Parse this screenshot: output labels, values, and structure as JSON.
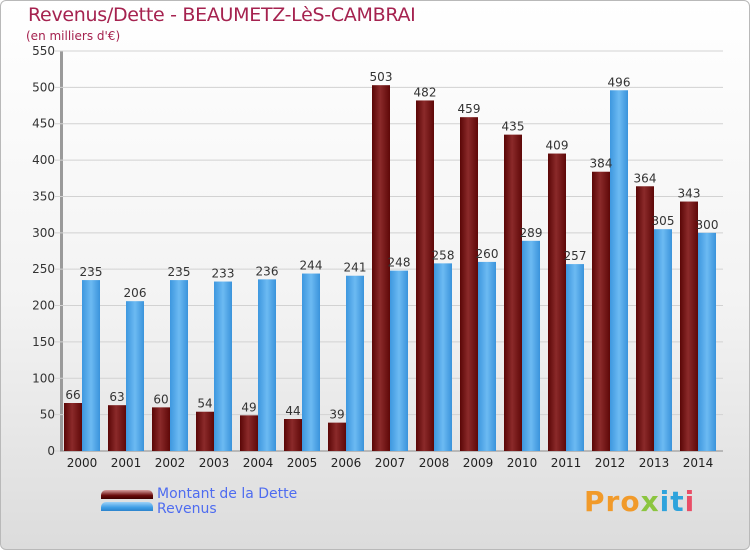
{
  "title": "Revenus/Dette - BEAUMETZ-LèS-CAMBRAI",
  "subtitle": "(en milliers d'€)",
  "legend": {
    "dette": "Montant de la Dette",
    "revenus": "Revenus"
  },
  "logo": {
    "text": "Proxiti",
    "parts": [
      "Pro",
      "x",
      "it",
      "i"
    ]
  },
  "colors": {
    "dette": "#7a1515",
    "revenus": "#4aa6ea",
    "title": "#a5224f",
    "legend_text": "#4e6cf0"
  },
  "chart_data": {
    "type": "bar",
    "categories": [
      "2000",
      "2001",
      "2002",
      "2003",
      "2004",
      "2005",
      "2006",
      "2007",
      "2008",
      "2009",
      "2010",
      "2011",
      "2012",
      "2013",
      "2014"
    ],
    "series": [
      {
        "name": "Montant de la Dette",
        "values": [
          66,
          63,
          60,
          54,
          49,
          44,
          39,
          503,
          482,
          459,
          435,
          409,
          384,
          364,
          343
        ]
      },
      {
        "name": "Revenus",
        "values": [
          235,
          206,
          235,
          233,
          236,
          244,
          241,
          248,
          258,
          260,
          289,
          257,
          496,
          305,
          300
        ]
      }
    ],
    "yticks": [
      0,
      50,
      100,
      150,
      200,
      250,
      300,
      350,
      400,
      450,
      500,
      550
    ],
    "ylim": [
      0,
      550
    ],
    "grid": true
  }
}
